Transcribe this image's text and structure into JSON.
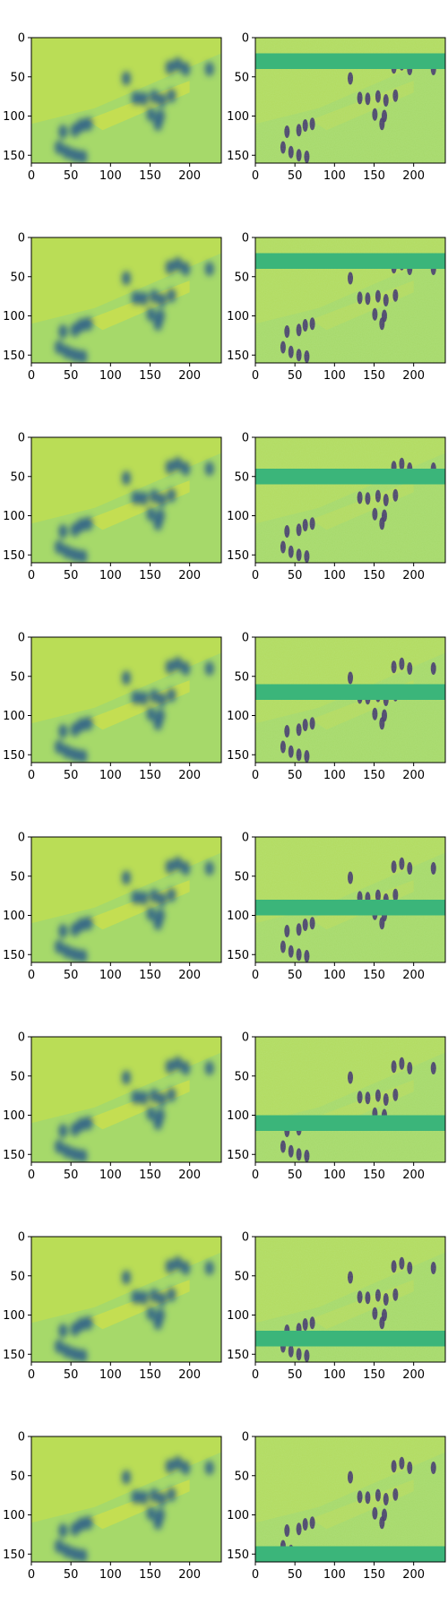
{
  "figure": {
    "grid": "8 rows x 2 columns of image panels",
    "colormap": "viridis",
    "left_column": "smooth reconstruction of a crowd scene",
    "right_column": "detailed crowd scene with one horizontal band masked out"
  },
  "axes": {
    "x_ticks": [
      0,
      50,
      100,
      150,
      200
    ],
    "y_ticks": [
      0,
      50,
      100,
      150
    ],
    "xlim": [
      0,
      240
    ],
    "ylim": [
      160,
      0
    ]
  },
  "chart_data": {
    "type": "heatmap",
    "rows": 8,
    "cols": 2,
    "image_extent": {
      "x": [
        0,
        240
      ],
      "y": [
        0,
        160
      ]
    },
    "x_ticks": [
      0,
      50,
      100,
      150,
      200
    ],
    "y_ticks": [
      0,
      50,
      100,
      150
    ],
    "mask_bands": [
      {
        "row": 1,
        "y_from": 20,
        "y_to": 40
      },
      {
        "row": 2,
        "y_from": 20,
        "y_to": 40
      },
      {
        "row": 3,
        "y_from": 40,
        "y_to": 60
      },
      {
        "row": 4,
        "y_from": 60,
        "y_to": 80
      },
      {
        "row": 5,
        "y_from": 80,
        "y_to": 100
      },
      {
        "row": 6,
        "y_from": 100,
        "y_to": 120
      },
      {
        "row": 7,
        "y_from": 120,
        "y_to": 140
      },
      {
        "row": 8,
        "y_from": 140,
        "y_to": 160
      }
    ],
    "colors": {
      "field": "#a6d96a",
      "light": "#c8e04a",
      "band": "#3bb57a",
      "dark": "#2c5f8a",
      "deep": "#3b2a6e",
      "bright": "#fde725"
    }
  }
}
